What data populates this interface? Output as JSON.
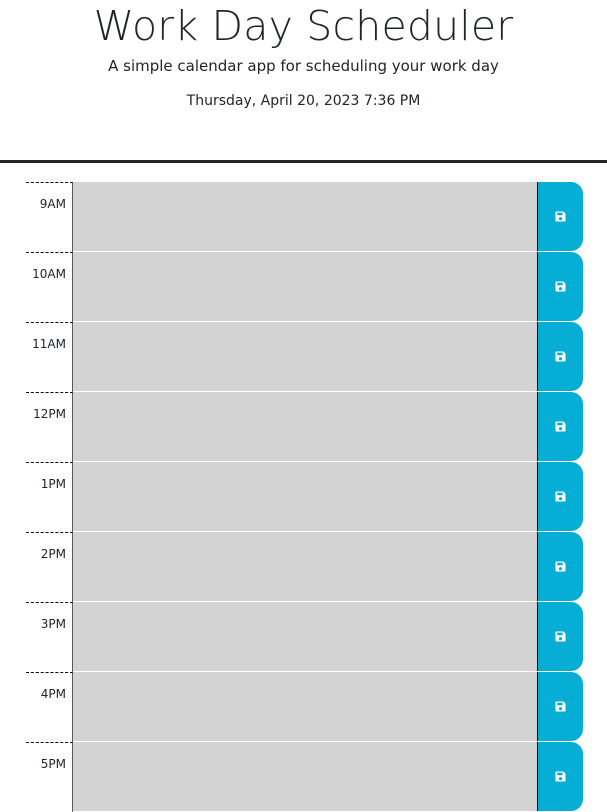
{
  "header": {
    "title": "Work Day Scheduler",
    "subtitle": "A simple calendar app for scheduling your work day",
    "current_date_time": "Thursday, April 20, 2023 7:36 PM"
  },
  "colors": {
    "textarea_background": "#d3d3d3",
    "save_button": "#06aed5",
    "save_icon": "#ffffff",
    "header_rule": "#212529"
  },
  "time_blocks": [
    {
      "hour_label": "9AM",
      "description": "",
      "save_icon": "save-icon"
    },
    {
      "hour_label": "10AM",
      "description": "",
      "save_icon": "save-icon"
    },
    {
      "hour_label": "11AM",
      "description": "",
      "save_icon": "save-icon"
    },
    {
      "hour_label": "12PM",
      "description": "",
      "save_icon": "save-icon"
    },
    {
      "hour_label": "1PM",
      "description": "",
      "save_icon": "save-icon"
    },
    {
      "hour_label": "2PM",
      "description": "",
      "save_icon": "save-icon"
    },
    {
      "hour_label": "3PM",
      "description": "",
      "save_icon": "save-icon"
    },
    {
      "hour_label": "4PM",
      "description": "",
      "save_icon": "save-icon"
    },
    {
      "hour_label": "5PM",
      "description": "",
      "save_icon": "save-icon"
    }
  ]
}
